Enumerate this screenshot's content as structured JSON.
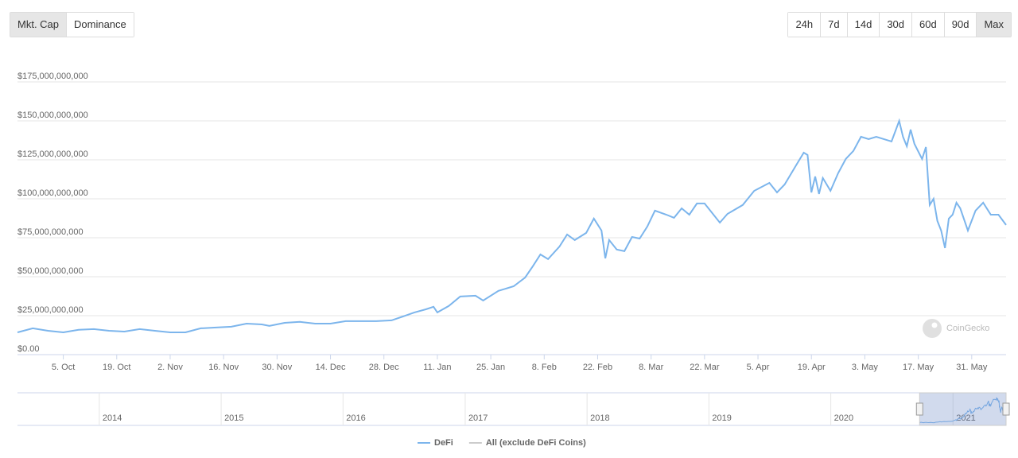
{
  "left_buttons": {
    "items": [
      "Mkt. Cap",
      "Dominance"
    ],
    "active": 0
  },
  "right_buttons": {
    "items": [
      "24h",
      "7d",
      "14d",
      "30d",
      "60d",
      "90d",
      "Max"
    ],
    "active": 6
  },
  "watermark": "CoinGecko",
  "chart_data": {
    "type": "line",
    "x": [
      "2020-09-23",
      "2020-09-27",
      "2020-10-01",
      "2020-10-05",
      "2020-10-09",
      "2020-10-13",
      "2020-10-17",
      "2020-10-21",
      "2020-10-25",
      "2020-10-29",
      "2020-11-02",
      "2020-11-06",
      "2020-11-10",
      "2020-11-14",
      "2020-11-18",
      "2020-11-22",
      "2020-11-26",
      "2020-11-28",
      "2020-12-02",
      "2020-12-06",
      "2020-12-10",
      "2020-12-14",
      "2020-12-18",
      "2020-12-22",
      "2020-12-26",
      "2020-12-30",
      "2021-01-02",
      "2021-01-05",
      "2021-01-08",
      "2021-01-10",
      "2021-01-11",
      "2021-01-14",
      "2021-01-17",
      "2021-01-21",
      "2021-01-23",
      "2021-01-27",
      "2021-01-31",
      "2021-02-03",
      "2021-02-05",
      "2021-02-07",
      "2021-02-09",
      "2021-02-12",
      "2021-02-14",
      "2021-02-16",
      "2021-02-19",
      "2021-02-21",
      "2021-02-23",
      "2021-02-24",
      "2021-02-25",
      "2021-02-27",
      "2021-03-01",
      "2021-03-03",
      "2021-03-05",
      "2021-03-07",
      "2021-03-09",
      "2021-03-12",
      "2021-03-14",
      "2021-03-16",
      "2021-03-18",
      "2021-03-20",
      "2021-03-22",
      "2021-03-26",
      "2021-03-28",
      "2021-04-01",
      "2021-04-04",
      "2021-04-08",
      "2021-04-10",
      "2021-04-12",
      "2021-04-15",
      "2021-04-17",
      "2021-04-18",
      "2021-04-19",
      "2021-04-20",
      "2021-04-21",
      "2021-04-22",
      "2021-04-24",
      "2021-04-26",
      "2021-04-28",
      "2021-04-30",
      "2021-05-02",
      "2021-05-04",
      "2021-05-06",
      "2021-05-10",
      "2021-05-12",
      "2021-05-13",
      "2021-05-14",
      "2021-05-15",
      "2021-05-16",
      "2021-05-18",
      "2021-05-19",
      "2021-05-20",
      "2021-05-21",
      "2021-05-22",
      "2021-05-23",
      "2021-05-24",
      "2021-05-25",
      "2021-05-26",
      "2021-05-27",
      "2021-05-28",
      "2021-05-30",
      "2021-06-01",
      "2021-06-03",
      "2021-06-05",
      "2021-06-07",
      "2021-06-09"
    ],
    "series": [
      {
        "name": "DeFi",
        "color": "#7cb5ec",
        "values": [
          14300000000,
          16900000000,
          15300000000,
          14300000000,
          15900000000,
          16400000000,
          15300000000,
          14800000000,
          16400000000,
          15300000000,
          14300000000,
          14300000000,
          16900000000,
          17400000000,
          17900000000,
          19900000000,
          19400000000,
          18400000000,
          20400000000,
          21000000000,
          19900000000,
          19900000000,
          21500000000,
          21500000000,
          21500000000,
          22000000000,
          24500000000,
          27100000000,
          29100000000,
          30700000000,
          27100000000,
          31200000000,
          37300000000,
          37800000000,
          34700000000,
          40900000000,
          43900000000,
          49500000000,
          56700000000,
          64300000000,
          61300000000,
          69400000000,
          77100000000,
          73500000000,
          78100000000,
          87300000000,
          79600000000,
          61800000000,
          73500000000,
          67400000000,
          66400000000,
          75500000000,
          74500000000,
          82200000000,
          92400000000,
          89800000000,
          87800000000,
          93900000000,
          89800000000,
          97000000000,
          97000000000,
          84700000000,
          90300000000,
          96000000000,
          105100000000,
          110200000000,
          104100000000,
          109200000000,
          121500000000,
          129600000000,
          128100000000,
          104100000000,
          114300000000,
          103100000000,
          113300000000,
          105100000000,
          116400000000,
          125500000000,
          130700000000,
          139800000000,
          138300000000,
          139800000000,
          136800000000,
          150000000000,
          139800000000,
          133700000000,
          144400000000,
          135200000000,
          125500000000,
          133200000000,
          96000000000,
          100000000000,
          85800000000,
          79600000000,
          68400000000,
          87300000000,
          89800000000,
          97500000000,
          93900000000,
          79600000000,
          92400000000,
          97500000000,
          89800000000,
          89800000000,
          83200000000
        ]
      }
    ],
    "hidden_series": [
      {
        "name": "All (exclude DeFi Coins)",
        "color": "#cccccc"
      }
    ],
    "xlim": [
      "2020-09-23",
      "2021-06-09"
    ],
    "xticks": [
      {
        "value": "2020-10-05",
        "label": "5. Oct"
      },
      {
        "value": "2020-10-19",
        "label": "19. Oct"
      },
      {
        "value": "2020-11-02",
        "label": "2. Nov"
      },
      {
        "value": "2020-11-16",
        "label": "16. Nov"
      },
      {
        "value": "2020-11-30",
        "label": "30. Nov"
      },
      {
        "value": "2020-12-14",
        "label": "14. Dec"
      },
      {
        "value": "2020-12-28",
        "label": "28. Dec"
      },
      {
        "value": "2021-01-11",
        "label": "11. Jan"
      },
      {
        "value": "2021-01-25",
        "label": "25. Jan"
      },
      {
        "value": "2021-02-08",
        "label": "8. Feb"
      },
      {
        "value": "2021-02-22",
        "label": "22. Feb"
      },
      {
        "value": "2021-03-08",
        "label": "8. Mar"
      },
      {
        "value": "2021-03-22",
        "label": "22. Mar"
      },
      {
        "value": "2021-04-05",
        "label": "5. Apr"
      },
      {
        "value": "2021-04-19",
        "label": "19. Apr"
      },
      {
        "value": "2021-05-03",
        "label": "3. May"
      },
      {
        "value": "2021-05-17",
        "label": "17. May"
      },
      {
        "value": "2021-05-31",
        "label": "31. May"
      }
    ],
    "ylim": [
      0,
      175000000000
    ],
    "yticks": [
      {
        "value": 0,
        "label": "$0.00"
      },
      {
        "value": 25000000000,
        "label": "$25,000,000,000"
      },
      {
        "value": 50000000000,
        "label": "$50,000,000,000"
      },
      {
        "value": 75000000000,
        "label": "$75,000,000,000"
      },
      {
        "value": 100000000000,
        "label": "$100,000,000,000"
      },
      {
        "value": 125000000000,
        "label": "$125,000,000,000"
      },
      {
        "value": 150000000000,
        "label": "$150,000,000,000"
      },
      {
        "value": 175000000000,
        "label": "$175,000,000,000"
      }
    ],
    "grid": true,
    "navigator": {
      "xlim": [
        "2013-05-01",
        "2021-06-09"
      ],
      "xticks": [
        {
          "value": "2014-01-01",
          "label": "2014"
        },
        {
          "value": "2015-01-01",
          "label": "2015"
        },
        {
          "value": "2016-01-01",
          "label": "2016"
        },
        {
          "value": "2017-01-01",
          "label": "2017"
        },
        {
          "value": "2018-01-01",
          "label": "2018"
        },
        {
          "value": "2019-01-01",
          "label": "2019"
        },
        {
          "value": "2020-01-01",
          "label": "2020"
        },
        {
          "value": "2021-01-01",
          "label": "2021"
        }
      ]
    }
  }
}
